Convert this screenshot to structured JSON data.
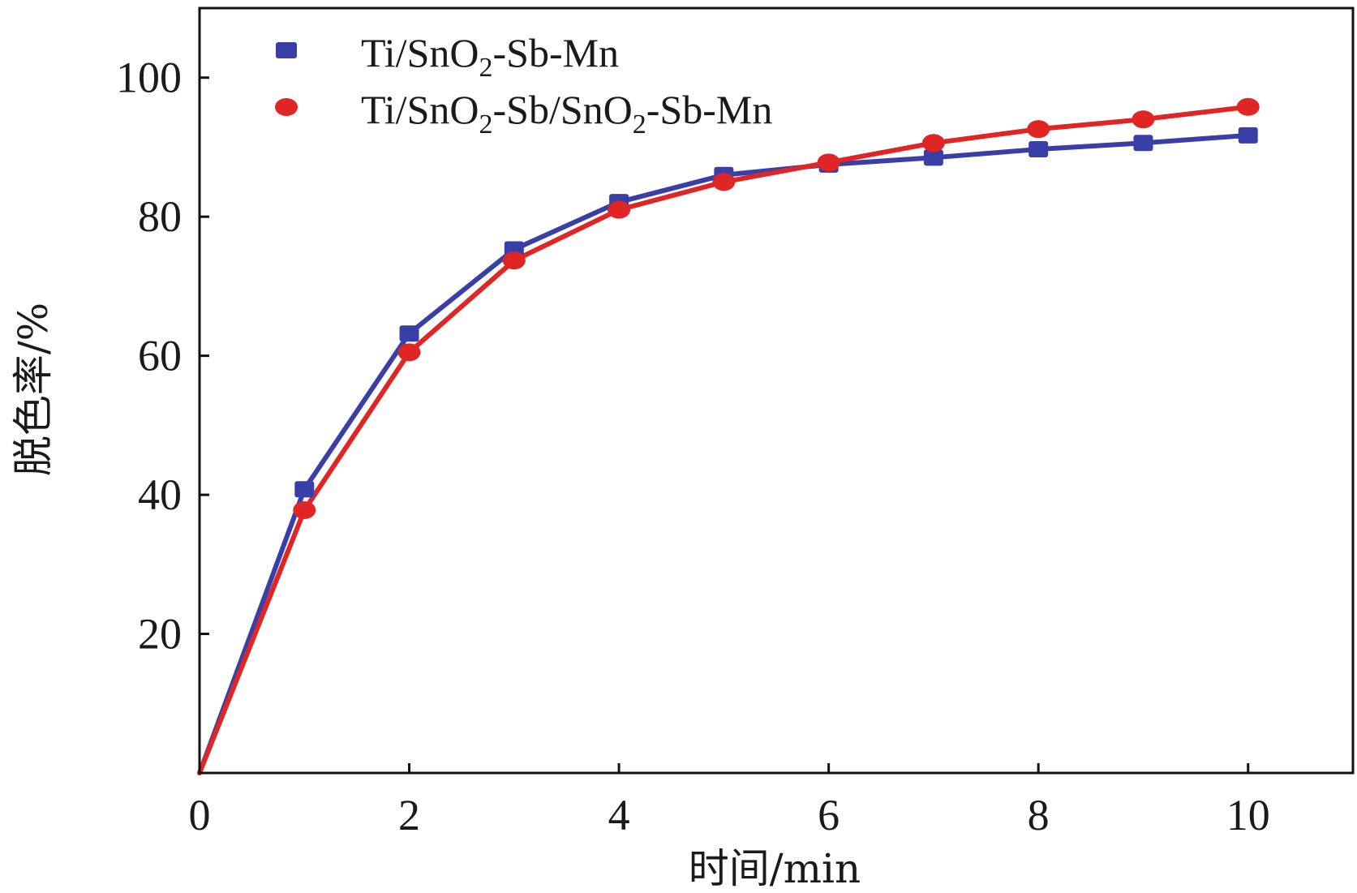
{
  "chart_data": {
    "type": "line",
    "xlabel": "时间/min",
    "ylabel": "脱色率/%",
    "xlim": [
      0,
      11
    ],
    "ylim": [
      0,
      110
    ],
    "x_ticks": [
      0,
      2,
      4,
      6,
      8,
      10
    ],
    "x_tick_labels": [
      "0",
      "2",
      "4",
      "6",
      "8",
      "10"
    ],
    "y_ticks": [
      20,
      40,
      60,
      80,
      100
    ],
    "y_tick_labels": [
      "20",
      "40",
      "60",
      "80",
      "100"
    ],
    "grid": false,
    "legend_position": "top-left",
    "x": [
      0,
      1,
      2,
      3,
      4,
      5,
      6,
      7,
      8,
      9,
      10
    ],
    "series": [
      {
        "name": "Ti/SnO2-Sb-Mn",
        "legend_main": "Ti/SnO",
        "legend_sub": "2",
        "legend_tail": "-Sb-Mn",
        "marker": "square",
        "color": "#3a3fa8",
        "values": [
          0,
          40.8,
          63.2,
          75.3,
          82.1,
          86.0,
          87.5,
          88.5,
          89.7,
          90.6,
          91.7
        ]
      },
      {
        "name": "Ti/SnO2-Sb/SnO2-Sb-Mn",
        "legend_main": "Ti/SnO",
        "legend_sub": "2",
        "legend_mid": "-Sb/SnO",
        "legend_sub2": "2",
        "legend_tail": "-Sb-Mn",
        "marker": "circle",
        "color": "#e02525",
        "values": [
          0,
          37.8,
          60.5,
          73.7,
          81.0,
          85.0,
          87.8,
          90.6,
          92.6,
          94.0,
          95.8
        ]
      }
    ]
  }
}
